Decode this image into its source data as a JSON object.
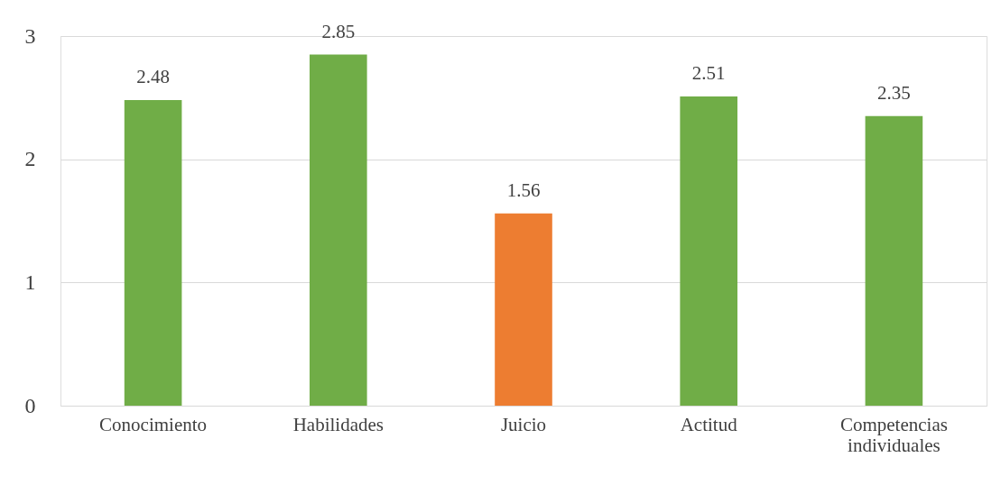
{
  "chart_data": {
    "type": "bar",
    "categories": [
      "Conocimiento",
      "Habilidades",
      "Juicio",
      "Actitud",
      "Competencias individuales"
    ],
    "values": [
      2.48,
      2.85,
      1.56,
      2.51,
      2.35
    ],
    "colors": [
      "#70ad47",
      "#70ad47",
      "#ed7d31",
      "#70ad47",
      "#70ad47"
    ],
    "ylim": [
      0,
      3
    ],
    "yticks": [
      0,
      1,
      2,
      3
    ],
    "grid": "y",
    "data_labels": true
  }
}
